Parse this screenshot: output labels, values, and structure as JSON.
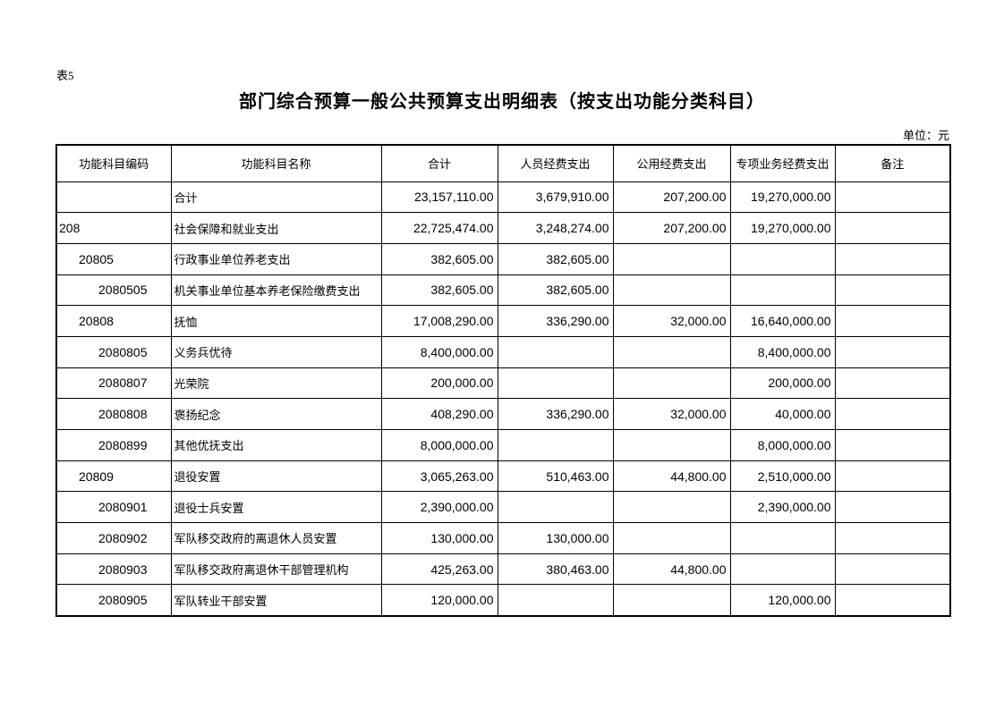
{
  "page": {
    "table_label": "表5",
    "title": "部门综合预算一般公共预算支出明细表（按支出功能分类科目）",
    "unit_note": "单位：元"
  },
  "colors": {
    "background": "#ffffff",
    "text": "#000000",
    "border": "#000000"
  },
  "table": {
    "columns": [
      "功能科目编码",
      "功能科目名称",
      "合计",
      "人员经费支出",
      "公用经费支出",
      "专项业务经费支出",
      "备注"
    ],
    "rows": [
      {
        "code": "",
        "level": 0,
        "name": "合计",
        "total": "23,157,110.00",
        "personnel": "3,679,910.00",
        "public": "207,200.00",
        "special": "19,270,000.00",
        "remark": ""
      },
      {
        "code": "208",
        "level": 1,
        "name": "社会保障和就业支出",
        "total": "22,725,474.00",
        "personnel": "3,248,274.00",
        "public": "207,200.00",
        "special": "19,270,000.00",
        "remark": ""
      },
      {
        "code": "20805",
        "level": 2,
        "name": "行政事业单位养老支出",
        "total": "382,605.00",
        "personnel": "382,605.00",
        "public": "",
        "special": "",
        "remark": ""
      },
      {
        "code": "2080505",
        "level": 3,
        "name": "机关事业单位基本养老保险缴费支出",
        "total": "382,605.00",
        "personnel": "382,605.00",
        "public": "",
        "special": "",
        "remark": ""
      },
      {
        "code": "20808",
        "level": 2,
        "name": "抚恤",
        "total": "17,008,290.00",
        "personnel": "336,290.00",
        "public": "32,000.00",
        "special": "16,640,000.00",
        "remark": ""
      },
      {
        "code": "2080805",
        "level": 3,
        "name": "义务兵优待",
        "total": "8,400,000.00",
        "personnel": "",
        "public": "",
        "special": "8,400,000.00",
        "remark": ""
      },
      {
        "code": "2080807",
        "level": 3,
        "name": "光荣院",
        "total": "200,000.00",
        "personnel": "",
        "public": "",
        "special": "200,000.00",
        "remark": ""
      },
      {
        "code": "2080808",
        "level": 3,
        "name": "褒扬纪念",
        "total": "408,290.00",
        "personnel": "336,290.00",
        "public": "32,000.00",
        "special": "40,000.00",
        "remark": ""
      },
      {
        "code": "2080899",
        "level": 3,
        "name": "其他优抚支出",
        "total": "8,000,000.00",
        "personnel": "",
        "public": "",
        "special": "8,000,000.00",
        "remark": ""
      },
      {
        "code": "20809",
        "level": 2,
        "name": "退役安置",
        "total": "3,065,263.00",
        "personnel": "510,463.00",
        "public": "44,800.00",
        "special": "2,510,000.00",
        "remark": ""
      },
      {
        "code": "2080901",
        "level": 3,
        "name": "退役士兵安置",
        "total": "2,390,000.00",
        "personnel": "",
        "public": "",
        "special": "2,390,000.00",
        "remark": ""
      },
      {
        "code": "2080902",
        "level": 3,
        "name": "军队移交政府的离退休人员安置",
        "total": "130,000.00",
        "personnel": "130,000.00",
        "public": "",
        "special": "",
        "remark": ""
      },
      {
        "code": "2080903",
        "level": 3,
        "name": "军队移交政府离退休干部管理机构",
        "total": "425,263.00",
        "personnel": "380,463.00",
        "public": "44,800.00",
        "special": "",
        "remark": ""
      },
      {
        "code": "2080905",
        "level": 3,
        "name": "军队转业干部安置",
        "total": "120,000.00",
        "personnel": "",
        "public": "",
        "special": "120,000.00",
        "remark": ""
      }
    ]
  }
}
